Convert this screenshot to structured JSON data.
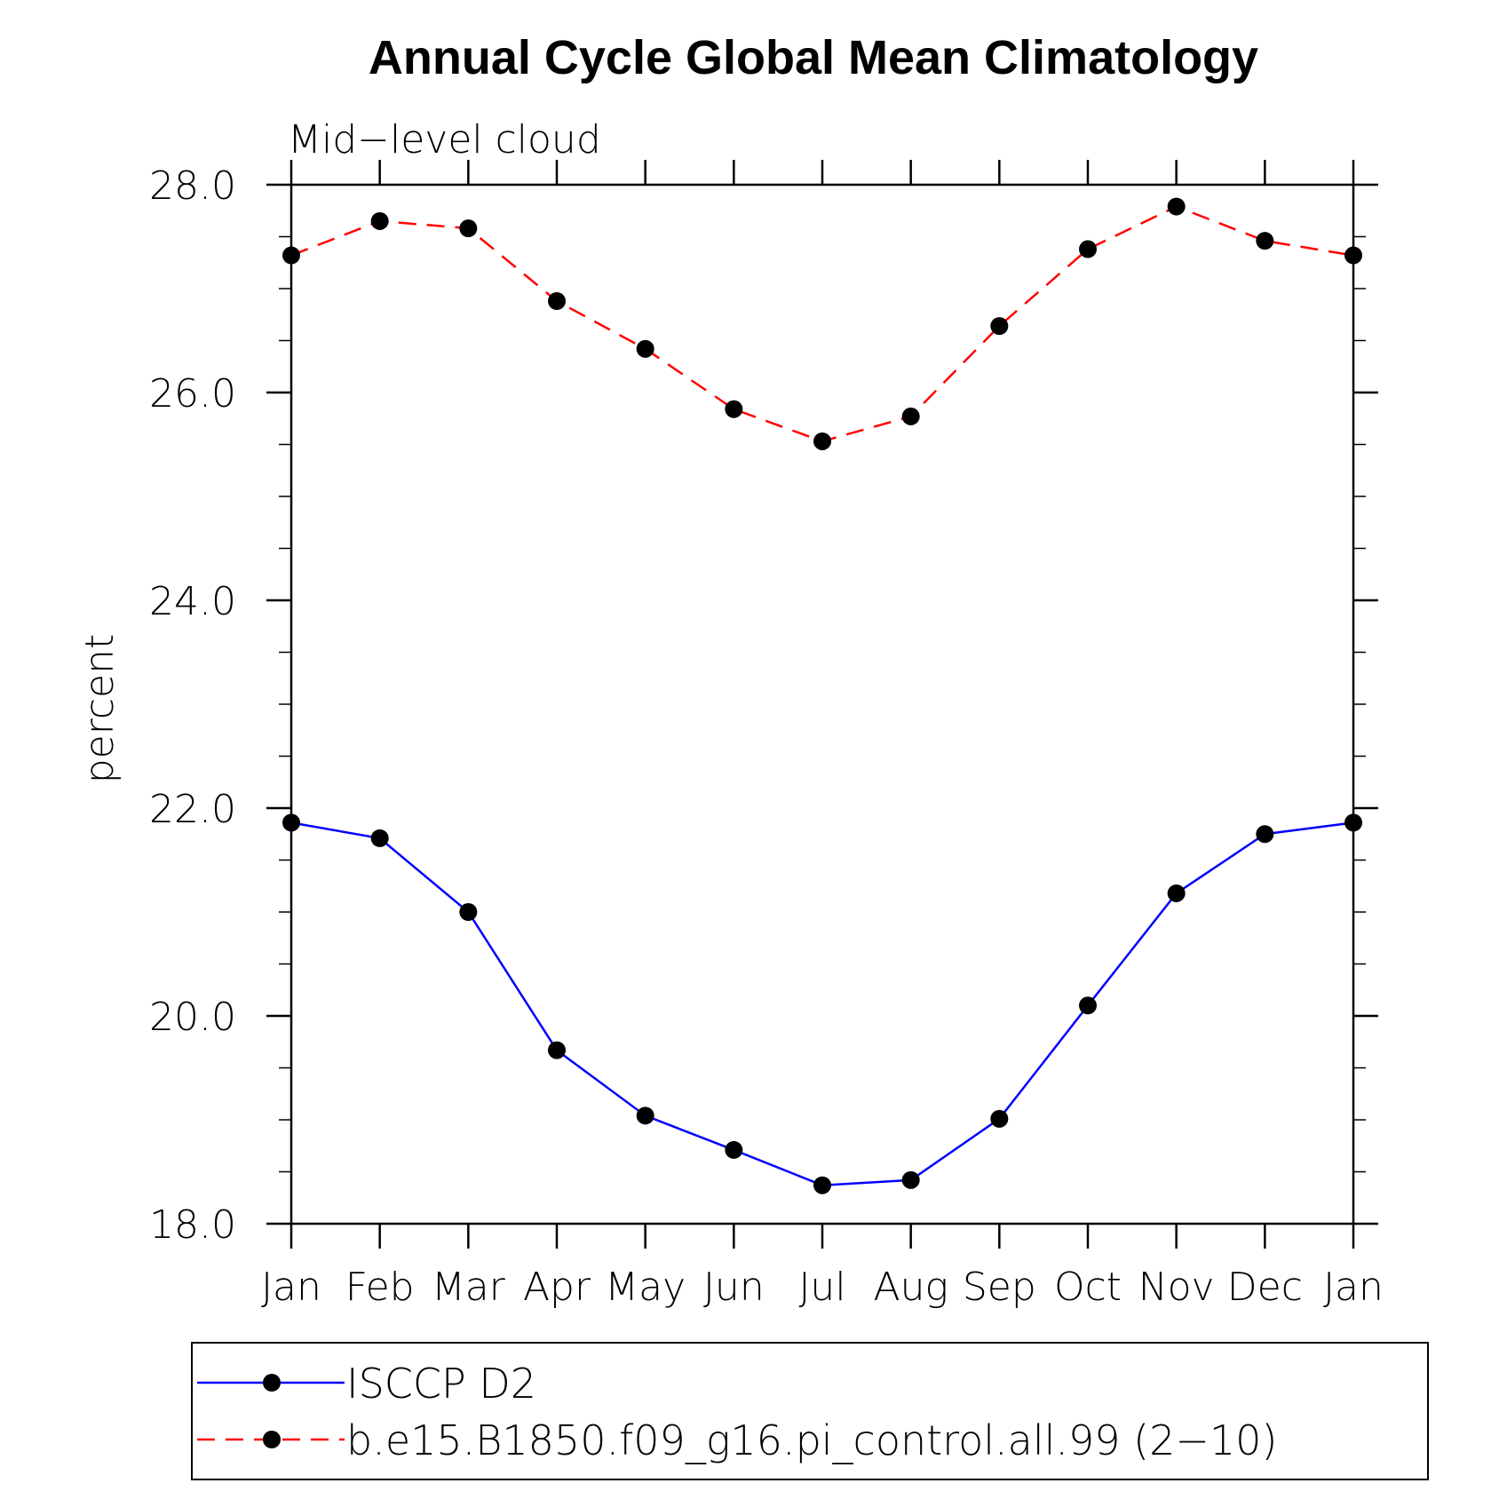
{
  "chart_data": {
    "type": "line",
    "title": "Annual Cycle Global Mean Climatology",
    "subtitle": "Mid−level cloud",
    "xlabel": "",
    "ylabel": "percent",
    "ylim": [
      18.0,
      28.0
    ],
    "yticks": [
      "18.0",
      "20.0",
      "22.0",
      "24.0",
      "26.0",
      "28.0"
    ],
    "ytick_values": [
      18,
      20,
      22,
      24,
      26,
      28
    ],
    "categories": [
      "Jan",
      "Feb",
      "Mar",
      "Apr",
      "May",
      "Jun",
      "Jul",
      "Aug",
      "Sep",
      "Oct",
      "Nov",
      "Dec",
      "Jan"
    ],
    "series": [
      {
        "name": "ISCCP D2",
        "color": "#0000ff",
        "style": "solid",
        "marker": "filled-circle",
        "values": [
          21.86,
          21.71,
          21.0,
          19.67,
          19.04,
          18.71,
          18.37,
          18.42,
          19.01,
          20.1,
          21.18,
          21.75,
          21.86
        ]
      },
      {
        "name": "b.e15.B1850.f09_g16.pi_control.all.99 (2−10)",
        "color": "#ff0000",
        "style": "dashed",
        "marker": "filled-circle",
        "values": [
          27.32,
          27.65,
          27.58,
          26.88,
          26.42,
          25.84,
          25.53,
          25.77,
          26.64,
          27.38,
          27.79,
          27.46,
          27.32
        ]
      }
    ],
    "legend_position": "bottom"
  }
}
